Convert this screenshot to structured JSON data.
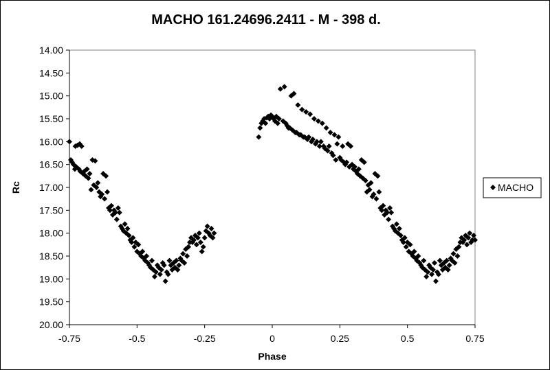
{
  "chart_data": {
    "type": "scatter",
    "title": "MACHO 161.24696.2411  - M - 398 d.",
    "xlabel": "Phase",
    "ylabel": "Rc",
    "xlim": [
      -0.75,
      0.75
    ],
    "ylim": [
      14.0,
      20.0
    ],
    "y_inverted": true,
    "grid": false,
    "legend_position": "right",
    "marker": "diamond",
    "marker_color": "#000000",
    "x_ticks": [
      -0.75,
      -0.5,
      -0.25,
      0,
      0.25,
      0.5,
      0.75
    ],
    "x_tick_labels": [
      "-0.75",
      "-0.5",
      "-0.25",
      "0",
      "0.25",
      "0.5",
      "0.75"
    ],
    "y_ticks": [
      14.0,
      14.5,
      15.0,
      15.5,
      16.0,
      16.5,
      17.0,
      17.5,
      18.0,
      18.5,
      19.0,
      19.5,
      20.0
    ],
    "y_tick_labels": [
      "14.00",
      "14.50",
      "15.00",
      "15.50",
      "16.00",
      "16.50",
      "17.00",
      "17.50",
      "18.00",
      "18.50",
      "19.00",
      "19.50",
      "20.00"
    ],
    "series": [
      {
        "name": "MACHO",
        "points": [
          [
            -0.75,
            16.0
          ],
          [
            -0.745,
            16.4
          ],
          [
            -0.74,
            16.45
          ],
          [
            -0.735,
            16.5
          ],
          [
            -0.73,
            16.6
          ],
          [
            -0.728,
            16.1
          ],
          [
            -0.725,
            16.55
          ],
          [
            -0.72,
            16.08
          ],
          [
            -0.715,
            16.6
          ],
          [
            -0.712,
            16.05
          ],
          [
            -0.71,
            16.65
          ],
          [
            -0.705,
            16.1
          ],
          [
            -0.7,
            16.7
          ],
          [
            -0.695,
            16.65
          ],
          [
            -0.69,
            16.75
          ],
          [
            -0.685,
            16.6
          ],
          [
            -0.68,
            16.8
          ],
          [
            -0.675,
            16.7
          ],
          [
            -0.67,
            17.05
          ],
          [
            -0.665,
            16.4
          ],
          [
            -0.66,
            16.95
          ],
          [
            -0.655,
            16.42
          ],
          [
            -0.65,
            17.0
          ],
          [
            -0.645,
            16.9
          ],
          [
            -0.64,
            17.1
          ],
          [
            -0.635,
            17.2
          ],
          [
            -0.63,
            17.15
          ],
          [
            -0.625,
            16.7
          ],
          [
            -0.62,
            17.25
          ],
          [
            -0.615,
            16.75
          ],
          [
            -0.61,
            17.1
          ],
          [
            -0.605,
            17.45
          ],
          [
            -0.6,
            17.5
          ],
          [
            -0.595,
            17.4
          ],
          [
            -0.59,
            17.6
          ],
          [
            -0.585,
            17.5
          ],
          [
            -0.58,
            17.55
          ],
          [
            -0.575,
            17.7
          ],
          [
            -0.57,
            17.45
          ],
          [
            -0.565,
            17.55
          ],
          [
            -0.56,
            17.85
          ],
          [
            -0.555,
            17.9
          ],
          [
            -0.55,
            17.95
          ],
          [
            -0.545,
            17.8
          ],
          [
            -0.54,
            18.0
          ],
          [
            -0.535,
            17.9
          ],
          [
            -0.53,
            18.05
          ],
          [
            -0.525,
            18.15
          ],
          [
            -0.52,
            18.2
          ],
          [
            -0.515,
            18.1
          ],
          [
            -0.51,
            18.3
          ],
          [
            -0.505,
            18.2
          ],
          [
            -0.5,
            18.4
          ],
          [
            -0.495,
            18.25
          ],
          [
            -0.49,
            18.45
          ],
          [
            -0.485,
            18.5
          ],
          [
            -0.48,
            18.4
          ],
          [
            -0.475,
            18.55
          ],
          [
            -0.47,
            18.6
          ],
          [
            -0.465,
            18.5
          ],
          [
            -0.46,
            18.65
          ],
          [
            -0.455,
            18.7
          ],
          [
            -0.45,
            18.75
          ],
          [
            -0.445,
            18.6
          ],
          [
            -0.44,
            18.8
          ],
          [
            -0.435,
            18.95
          ],
          [
            -0.43,
            18.85
          ],
          [
            -0.425,
            18.7
          ],
          [
            -0.42,
            18.75
          ],
          [
            -0.415,
            18.9
          ],
          [
            -0.41,
            18.8
          ],
          [
            -0.405,
            18.65
          ],
          [
            -0.4,
            18.7
          ],
          [
            -0.395,
            19.05
          ],
          [
            -0.39,
            18.85
          ],
          [
            -0.385,
            18.9
          ],
          [
            -0.38,
            18.6
          ],
          [
            -0.375,
            18.7
          ],
          [
            -0.37,
            18.8
          ],
          [
            -0.365,
            18.65
          ],
          [
            -0.36,
            18.75
          ],
          [
            -0.355,
            18.6
          ],
          [
            -0.35,
            18.8
          ],
          [
            -0.345,
            18.7
          ],
          [
            -0.34,
            18.55
          ],
          [
            -0.335,
            18.6
          ],
          [
            -0.33,
            18.45
          ],
          [
            -0.325,
            18.65
          ],
          [
            -0.32,
            18.35
          ],
          [
            -0.315,
            18.5
          ],
          [
            -0.31,
            18.3
          ],
          [
            -0.305,
            18.2
          ],
          [
            -0.3,
            18.1
          ],
          [
            -0.295,
            18.2
          ],
          [
            -0.29,
            18.15
          ],
          [
            -0.285,
            18.05
          ],
          [
            -0.28,
            18.25
          ],
          [
            -0.275,
            18.1
          ],
          [
            -0.27,
            18.0
          ],
          [
            -0.265,
            18.2
          ],
          [
            -0.26,
            18.4
          ],
          [
            -0.255,
            18.3
          ],
          [
            -0.25,
            18.1
          ],
          [
            -0.245,
            17.95
          ],
          [
            -0.24,
            17.85
          ],
          [
            -0.235,
            18.0
          ],
          [
            -0.23,
            18.05
          ],
          [
            -0.225,
            17.9
          ],
          [
            -0.22,
            18.1
          ],
          [
            -0.215,
            18.0
          ],
          [
            -0.05,
            15.9
          ],
          [
            -0.045,
            15.7
          ],
          [
            -0.04,
            15.6
          ],
          [
            -0.035,
            15.55
          ],
          [
            -0.03,
            15.5
          ],
          [
            -0.025,
            15.6
          ],
          [
            -0.02,
            15.48
          ],
          [
            -0.015,
            15.45
          ],
          [
            -0.01,
            15.5
          ],
          [
            -0.005,
            15.42
          ],
          [
            0.0,
            15.45
          ],
          [
            0.005,
            15.5
          ],
          [
            0.01,
            15.55
          ],
          [
            0.015,
            15.45
          ],
          [
            0.02,
            15.6
          ],
          [
            0.025,
            15.5
          ],
          [
            0.03,
            14.85
          ],
          [
            0.04,
            15.55
          ],
          [
            0.045,
            14.8
          ],
          [
            0.05,
            15.6
          ],
          [
            0.055,
            15.65
          ],
          [
            0.06,
            15.7
          ],
          [
            0.065,
            15.7
          ],
          [
            0.07,
            15.0
          ],
          [
            0.075,
            15.75
          ],
          [
            0.08,
            14.95
          ],
          [
            0.085,
            15.8
          ],
          [
            0.09,
            15.8
          ],
          [
            0.095,
            15.2
          ],
          [
            0.1,
            15.85
          ],
          [
            0.105,
            15.85
          ],
          [
            0.11,
            15.3
          ],
          [
            0.115,
            15.9
          ],
          [
            0.12,
            15.9
          ],
          [
            0.125,
            15.35
          ],
          [
            0.13,
            15.95
          ],
          [
            0.135,
            15.9
          ],
          [
            0.14,
            15.4
          ],
          [
            0.145,
            16.0
          ],
          [
            0.15,
            15.95
          ],
          [
            0.155,
            15.5
          ],
          [
            0.16,
            16.05
          ],
          [
            0.165,
            16.0
          ],
          [
            0.17,
            15.55
          ],
          [
            0.175,
            16.1
          ],
          [
            0.18,
            16.0
          ],
          [
            0.185,
            15.6
          ],
          [
            0.19,
            16.1
          ],
          [
            0.195,
            16.15
          ],
          [
            0.2,
            15.7
          ],
          [
            0.205,
            16.2
          ],
          [
            0.21,
            16.1
          ],
          [
            0.215,
            15.8
          ],
          [
            0.22,
            16.25
          ],
          [
            0.225,
            16.3
          ],
          [
            0.23,
            15.85
          ],
          [
            0.235,
            16.4
          ],
          [
            0.24,
            16.05
          ],
          [
            0.245,
            15.9
          ],
          [
            0.25,
            16.35
          ],
          [
            0.255,
            16.4
          ],
          [
            0.26,
            16.1
          ],
          [
            0.265,
            16.45
          ],
          [
            0.27,
            16.5
          ],
          [
            0.275,
            16.45
          ],
          [
            0.28,
            16.05
          ],
          [
            0.285,
            16.55
          ],
          [
            0.29,
            16.1
          ],
          [
            0.295,
            16.5
          ],
          [
            0.3,
            16.6
          ],
          [
            0.305,
            16.55
          ],
          [
            0.31,
            16.65
          ],
          [
            0.315,
            16.7
          ],
          [
            0.32,
            16.6
          ],
          [
            0.325,
            16.75
          ],
          [
            0.33,
            16.4
          ],
          [
            0.335,
            16.8
          ],
          [
            0.34,
            16.45
          ],
          [
            0.345,
            16.85
          ],
          [
            0.35,
            17.1
          ],
          [
            0.355,
            16.95
          ],
          [
            0.36,
            17.05
          ],
          [
            0.365,
            16.9
          ],
          [
            0.37,
            17.2
          ],
          [
            0.375,
            17.15
          ],
          [
            0.38,
            16.7
          ],
          [
            0.385,
            17.25
          ],
          [
            0.39,
            16.75
          ],
          [
            0.395,
            17.1
          ],
          [
            0.4,
            17.45
          ],
          [
            0.405,
            17.5
          ],
          [
            0.41,
            17.4
          ],
          [
            0.415,
            17.6
          ],
          [
            0.42,
            17.5
          ],
          [
            0.425,
            17.55
          ],
          [
            0.43,
            17.7
          ],
          [
            0.435,
            17.45
          ],
          [
            0.44,
            17.55
          ],
          [
            0.445,
            17.85
          ],
          [
            0.45,
            17.9
          ],
          [
            0.455,
            17.95
          ],
          [
            0.46,
            17.8
          ],
          [
            0.465,
            18.0
          ],
          [
            0.47,
            17.9
          ],
          [
            0.475,
            18.05
          ],
          [
            0.48,
            18.15
          ],
          [
            0.485,
            18.2
          ],
          [
            0.49,
            18.1
          ],
          [
            0.495,
            18.3
          ],
          [
            0.5,
            18.2
          ],
          [
            0.505,
            18.4
          ],
          [
            0.51,
            18.25
          ],
          [
            0.515,
            18.45
          ],
          [
            0.52,
            18.5
          ],
          [
            0.525,
            18.4
          ],
          [
            0.53,
            18.55
          ],
          [
            0.535,
            18.6
          ],
          [
            0.54,
            18.5
          ],
          [
            0.545,
            18.65
          ],
          [
            0.55,
            18.7
          ],
          [
            0.555,
            18.75
          ],
          [
            0.56,
            18.6
          ],
          [
            0.565,
            18.8
          ],
          [
            0.57,
            18.95
          ],
          [
            0.575,
            18.85
          ],
          [
            0.58,
            18.7
          ],
          [
            0.585,
            18.75
          ],
          [
            0.59,
            18.9
          ],
          [
            0.595,
            18.8
          ],
          [
            0.6,
            18.65
          ],
          [
            0.605,
            19.05
          ],
          [
            0.61,
            18.85
          ],
          [
            0.615,
            18.9
          ],
          [
            0.62,
            18.6
          ],
          [
            0.625,
            18.7
          ],
          [
            0.63,
            18.8
          ],
          [
            0.635,
            18.65
          ],
          [
            0.64,
            18.75
          ],
          [
            0.645,
            18.6
          ],
          [
            0.65,
            18.8
          ],
          [
            0.655,
            18.7
          ],
          [
            0.66,
            18.55
          ],
          [
            0.665,
            18.6
          ],
          [
            0.67,
            18.45
          ],
          [
            0.675,
            18.65
          ],
          [
            0.68,
            18.35
          ],
          [
            0.685,
            18.5
          ],
          [
            0.69,
            18.3
          ],
          [
            0.695,
            18.2
          ],
          [
            0.7,
            18.1
          ],
          [
            0.705,
            18.2
          ],
          [
            0.71,
            18.15
          ],
          [
            0.715,
            18.05
          ],
          [
            0.72,
            18.25
          ],
          [
            0.725,
            18.1
          ],
          [
            0.73,
            18.0
          ],
          [
            0.735,
            18.2
          ],
          [
            0.74,
            18.15
          ],
          [
            0.745,
            18.05
          ],
          [
            0.75,
            18.15
          ]
        ]
      }
    ]
  }
}
